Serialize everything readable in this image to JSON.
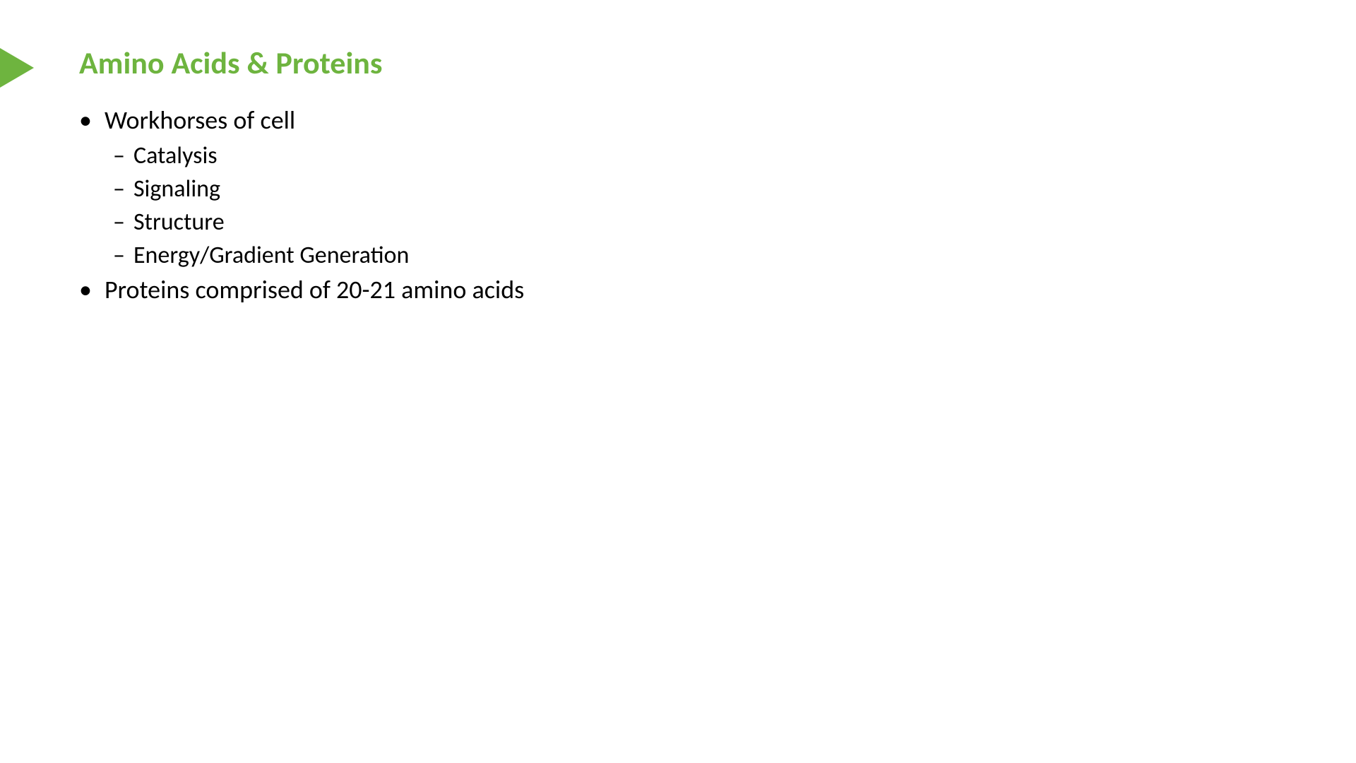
{
  "slide": {
    "title": "Amino Acids & Proteins",
    "title_color": "#6eb43f",
    "title_fontsize": 44,
    "title_fontweight": "bold",
    "accent_color": "#6eb43f",
    "background_color": "#ffffff",
    "text_color": "#000000",
    "body_fontsize_level1": 36,
    "body_fontsize_level2": 34,
    "bullets": [
      {
        "level": 1,
        "text": "Workhorses of cell"
      },
      {
        "level": 2,
        "text": "Catalysis"
      },
      {
        "level": 2,
        "text": "Signaling"
      },
      {
        "level": 2,
        "text": "Structure"
      },
      {
        "level": 2,
        "text": "Energy/Gradient Generation"
      },
      {
        "level": 1,
        "text": "Proteins comprised of 20-21 amino acids"
      }
    ]
  }
}
